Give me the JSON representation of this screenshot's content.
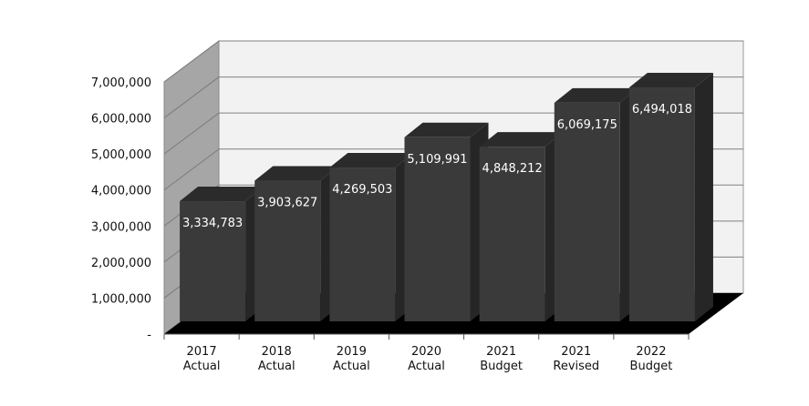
{
  "chart_data": {
    "type": "bar",
    "style": "3d",
    "categories": [
      "2017\nActual",
      "2018\nActual",
      "2019\nActual",
      "2020\nActual",
      "2021\nBudget",
      "2021\nRevised",
      "2022\nBudget"
    ],
    "values": [
      3334783,
      3903627,
      4269503,
      5109991,
      4848212,
      6069175,
      6494018
    ],
    "data_labels": [
      "3,334,783",
      "3,903,627",
      "4,269,503",
      "5,109,991",
      "4,848,212",
      "6,069,175",
      "6,494,018"
    ],
    "ylim": [
      0,
      7000000
    ],
    "y_ticks": [
      0,
      1000000,
      2000000,
      3000000,
      4000000,
      5000000,
      6000000,
      7000000
    ],
    "y_tick_labels": [
      "-",
      "1,000,000",
      "2,000,000",
      "3,000,000",
      "4,000,000",
      "5,000,000",
      "6,000,000",
      "7,000,000"
    ],
    "title": "",
    "xlabel": "",
    "ylabel": "",
    "grid": true,
    "legend": "none",
    "colors": {
      "bar_front": "#3a3a3a",
      "bar_top": "#2b2b2b",
      "bar_side": "#262626",
      "back_wall": "#f2f2f2",
      "side_wall": "#a6a6a6",
      "floor": "#000000",
      "gridline": "#808080"
    }
  }
}
